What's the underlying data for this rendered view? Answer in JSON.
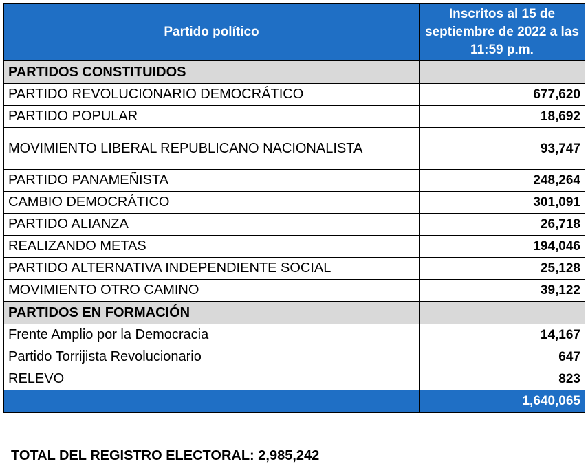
{
  "header": {
    "party_col": "Partido político",
    "count_col": "Inscritos al 15 de septiembre de  2022 a las 11:59 p.m."
  },
  "sections": [
    {
      "title": "PARTIDOS CONSTITUIDOS",
      "rows": [
        {
          "name": "PARTIDO REVOLUCIONARIO DEMOCRÁTICO",
          "value": "677,620"
        },
        {
          "name": "PARTIDO POPULAR",
          "value": "18,692"
        },
        {
          "name": "MOVIMIENTO LIBERAL REPUBLICANO NACIONALISTA",
          "value": "93,747"
        },
        {
          "name": "PARTIDO PANAMEÑISTA",
          "value": "248,264"
        },
        {
          "name": "CAMBIO DEMOCRÁTICO",
          "value": "301,091"
        },
        {
          "name": "PARTIDO ALIANZA",
          "value": "26,718"
        },
        {
          "name": "REALIZANDO METAS",
          "value": "194,046"
        },
        {
          "name": "PARTIDO ALTERNATIVA INDEPENDIENTE SOCIAL",
          "value": "25,128"
        },
        {
          "name": "MOVIMIENTO OTRO CAMINO",
          "value": "39,122"
        }
      ]
    },
    {
      "title": "PARTIDOS EN FORMACIÓN",
      "rows": [
        {
          "name": "Frente Amplio por la Democracia",
          "value": "14,167"
        },
        {
          "name": "Partido Torrijista Revolucionario",
          "value": "647"
        },
        {
          "name": "RELEVO",
          "value": "823"
        }
      ]
    }
  ],
  "total_value": "1,640,065",
  "footer": "TOTAL DEL REGISTRO ELECTORAL: 2,985,242"
}
